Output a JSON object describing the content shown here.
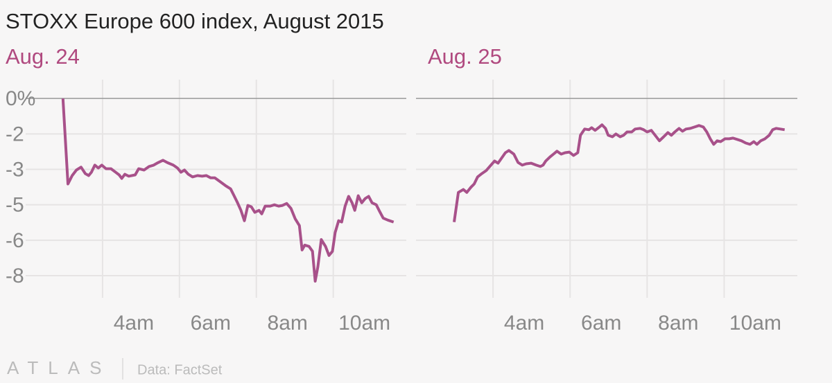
{
  "title": "STOXX Europe 600 index, August 2015",
  "logo": "ATLAS",
  "source": "Data: FactSet",
  "chart_data": [
    {
      "type": "line",
      "title": "Aug. 24",
      "color": "#a8518a",
      "x": [
        2.97,
        3.1,
        3.21,
        3.32,
        3.44,
        3.55,
        3.64,
        3.71,
        3.8,
        3.89,
        3.98,
        4.09,
        4.22,
        4.34,
        4.43,
        4.5,
        4.58,
        4.68,
        4.85,
        4.94,
        5.08,
        5.21,
        5.33,
        5.44,
        5.57,
        5.69,
        5.84,
        5.95,
        6.04,
        6.13,
        6.23,
        6.34,
        6.47,
        6.59,
        6.7,
        6.81,
        6.92,
        7.06,
        7.21,
        7.33,
        7.42,
        7.51,
        7.6,
        7.69,
        7.78,
        7.87,
        7.96,
        8.07,
        8.14,
        8.23,
        8.36,
        8.47,
        8.58,
        8.68,
        8.79,
        8.9,
        9.01,
        9.12,
        9.19,
        9.26,
        9.37,
        9.46,
        9.53,
        9.6,
        9.69,
        9.8,
        9.89,
        9.98,
        10.05,
        10.14,
        10.22,
        10.31,
        10.4,
        10.49,
        10.56,
        10.65,
        10.74,
        10.83,
        10.92,
        11.01,
        11.12,
        11.21,
        11.3,
        11.42,
        11.57
      ],
      "values": [
        0,
        -3.86,
        -3.48,
        -3.23,
        -3.1,
        -3.39,
        -3.48,
        -3.33,
        -3.01,
        -3.14,
        -3.01,
        -3.17,
        -3.17,
        -3.33,
        -3.45,
        -3.61,
        -3.42,
        -3.51,
        -3.45,
        -3.17,
        -3.23,
        -3.07,
        -3.01,
        -2.9,
        -2.79,
        -2.9,
        -3.01,
        -3.14,
        -3.33,
        -3.23,
        -3.42,
        -3.54,
        -3.48,
        -3.51,
        -3.48,
        -3.58,
        -3.58,
        -3.76,
        -3.95,
        -4.08,
        -4.39,
        -4.71,
        -5.05,
        -5.52,
        -4.83,
        -4.89,
        -5.14,
        -5.05,
        -5.21,
        -4.86,
        -4.86,
        -4.8,
        -4.86,
        -4.83,
        -4.74,
        -4.96,
        -5.43,
        -5.74,
        -6.84,
        -6.62,
        -6.68,
        -6.9,
        -8.25,
        -7.59,
        -6.37,
        -6.68,
        -7.09,
        -6.9,
        -6.05,
        -5.52,
        -5.58,
        -4.86,
        -4.42,
        -4.71,
        -5.05,
        -4.39,
        -4.71,
        -4.52,
        -4.42,
        -4.71,
        -4.8,
        -5.11,
        -5.4,
        -5.49,
        -5.58
      ],
      "xlim": [
        2,
        11.9
      ],
      "ylim": [
        -9.0,
        0.85
      ],
      "xticks": [
        {
          "value": 4,
          "label": "4am"
        },
        {
          "value": 6,
          "label": "6am"
        },
        {
          "value": 8,
          "label": "8am"
        },
        {
          "value": 10,
          "label": "10am"
        }
      ],
      "yticks": [
        {
          "value": 0,
          "label": "0%"
        },
        {
          "value": -1.6,
          "label": "-2"
        },
        {
          "value": -3.2,
          "label": "-3"
        },
        {
          "value": -4.8,
          "label": "-5"
        },
        {
          "value": -6.4,
          "label": "-6"
        },
        {
          "value": -8.0,
          "label": "-8"
        }
      ],
      "grid": true
    },
    {
      "type": "line",
      "title": "Aug. 25",
      "color": "#a8518a",
      "x": [
        2.99,
        3.1,
        3.23,
        3.32,
        3.42,
        3.51,
        3.6,
        3.71,
        3.82,
        3.93,
        4.04,
        4.13,
        4.22,
        4.32,
        4.41,
        4.54,
        4.65,
        4.76,
        4.86,
        4.99,
        5.12,
        5.23,
        5.3,
        5.37,
        5.48,
        5.57,
        5.66,
        5.77,
        5.87,
        5.98,
        6.09,
        6.2,
        6.27,
        6.38,
        6.49,
        6.56,
        6.65,
        6.74,
        6.83,
        6.92,
        6.99,
        7.1,
        7.19,
        7.3,
        7.39,
        7.48,
        7.6,
        7.69,
        7.82,
        7.91,
        8.0,
        8.11,
        8.22,
        8.32,
        8.43,
        8.54,
        8.63,
        8.72,
        8.83,
        8.92,
        9.01,
        9.12,
        9.23,
        9.35,
        9.46,
        9.55,
        9.64,
        9.73,
        9.82,
        9.91,
        10.02,
        10.13,
        10.23,
        10.34,
        10.45,
        10.56,
        10.67,
        10.77,
        10.85,
        10.95,
        11.06,
        11.17,
        11.26,
        11.35,
        11.46,
        11.57
      ],
      "values": [
        -5.58,
        -4.24,
        -4.11,
        -4.24,
        -4.02,
        -3.86,
        -3.54,
        -3.39,
        -3.26,
        -3.04,
        -2.82,
        -2.92,
        -2.7,
        -2.45,
        -2.35,
        -2.51,
        -2.89,
        -3.01,
        -2.95,
        -2.92,
        -3.01,
        -3.07,
        -3.01,
        -2.82,
        -2.64,
        -2.51,
        -2.38,
        -2.51,
        -2.45,
        -2.42,
        -2.57,
        -2.45,
        -1.66,
        -1.38,
        -1.41,
        -1.32,
        -1.44,
        -1.32,
        -1.19,
        -1.35,
        -1.66,
        -1.73,
        -1.6,
        -1.73,
        -1.66,
        -1.51,
        -1.51,
        -1.38,
        -1.35,
        -1.41,
        -1.51,
        -1.44,
        -1.69,
        -1.91,
        -1.73,
        -1.54,
        -1.66,
        -1.51,
        -1.35,
        -1.48,
        -1.38,
        -1.35,
        -1.29,
        -1.22,
        -1.29,
        -1.51,
        -1.82,
        -2.07,
        -1.91,
        -1.95,
        -1.82,
        -1.82,
        -1.79,
        -1.85,
        -1.91,
        -2.01,
        -2.07,
        -1.95,
        -2.07,
        -1.91,
        -1.82,
        -1.66,
        -1.41,
        -1.35,
        -1.38,
        -1.41
      ],
      "xlim": [
        2,
        11.9
      ],
      "ylim": [
        -9.0,
        0.85
      ],
      "xticks": [
        {
          "value": 4,
          "label": "4am"
        },
        {
          "value": 6,
          "label": "6am"
        },
        {
          "value": 8,
          "label": "8am"
        },
        {
          "value": 10,
          "label": "10am"
        }
      ],
      "grid": true
    }
  ]
}
